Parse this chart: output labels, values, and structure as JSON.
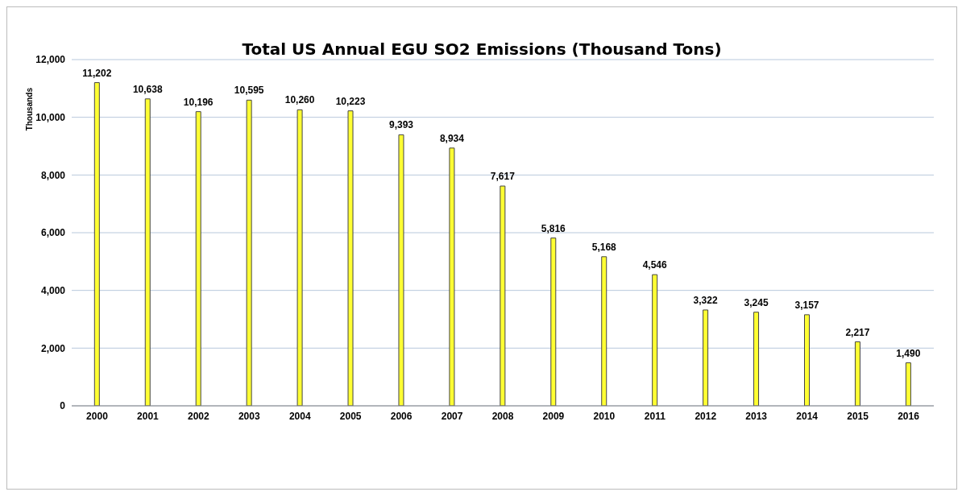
{
  "chart_data": {
    "type": "bar",
    "title": "Total US Annual EGU SO2 Emissions (Thousand Tons)",
    "ylabel": "Thousands",
    "categories": [
      "2000",
      "2001",
      "2002",
      "2003",
      "2004",
      "2005",
      "2006",
      "2007",
      "2008",
      "2009",
      "2010",
      "2011",
      "2012",
      "2013",
      "2014",
      "2015",
      "2016"
    ],
    "values": [
      11202,
      10638,
      10196,
      10595,
      10260,
      10223,
      9393,
      8934,
      7617,
      5816,
      5168,
      4546,
      3322,
      3245,
      3157,
      2217,
      1490
    ],
    "value_labels": [
      "11,202",
      "10,638",
      "10,196",
      "10,595",
      "10,260",
      "10,223",
      "9,393",
      "8,934",
      "7,617",
      "5,816",
      "5,168",
      "4,546",
      "3,322",
      "3,245",
      "3,157",
      "2,217",
      "1,490"
    ],
    "color": "#ffff33",
    "ylim": [
      0,
      12000
    ],
    "yticks": [
      0,
      {
        "value": 2000,
        "label": "2,000"
      },
      {
        "value": 4000,
        "label": "4,000"
      },
      {
        "value": 6000,
        "label": "6,000"
      },
      {
        "value": 8000,
        "label": "8,000"
      },
      {
        "value": 10000,
        "label": "10,000"
      },
      {
        "value": 12000,
        "label": "12,000"
      }
    ],
    "grid": "y"
  }
}
